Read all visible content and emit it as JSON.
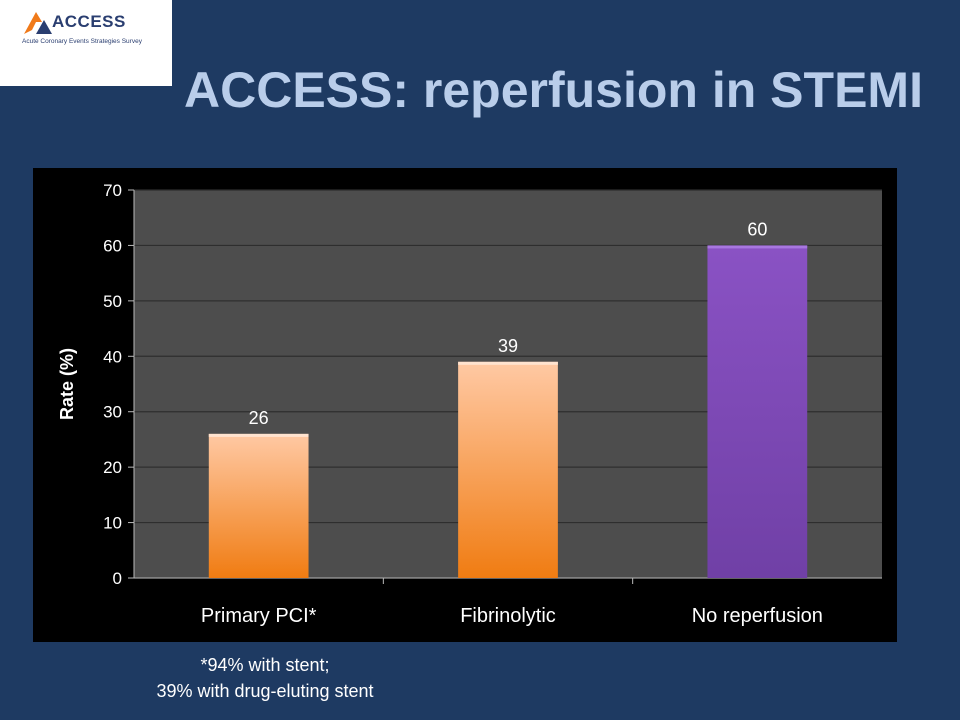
{
  "logo": {
    "name": "ACCESS",
    "tagline": "Acute Coronary Events Strategies Survey"
  },
  "slide_title": "ACCESS: reperfusion in STEMI",
  "chart_data": {
    "type": "bar",
    "categories": [
      "Primary PCI*",
      "Fibrinolytic",
      "No reperfusion"
    ],
    "values": [
      26,
      39,
      60
    ],
    "data_labels": [
      "26",
      "39",
      "60"
    ],
    "title": "",
    "xlabel": "",
    "ylabel": "Rate (%)",
    "ylim": [
      0,
      70
    ],
    "yticks": [
      0,
      10,
      20,
      30,
      40,
      50,
      60,
      70
    ],
    "ytick_labels": [
      "0",
      "10",
      "20",
      "30",
      "40",
      "50",
      "60",
      "70"
    ],
    "grid": true,
    "legend": "none",
    "bar_colors": [
      "#f58a1f",
      "#f58a1f",
      "#7b44ab"
    ],
    "plot_background": "#4d4d4d"
  },
  "footnote": {
    "line1": "*94% with stent;",
    "line2": "39% with drug-eluting stent"
  }
}
